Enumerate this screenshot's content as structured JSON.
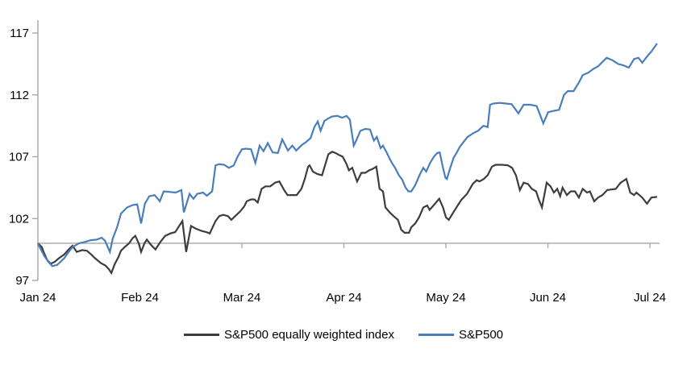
{
  "chart_data": {
    "type": "line",
    "title": "",
    "description": "Indexed performance (start = 100) of S&P500 vs S&P500 equally weighted index, Jan 2024 to Jul 2024, daily points",
    "grid": "off",
    "legend_position": "bottom-center",
    "axis_color": "#a6a6a6",
    "baseline_value": 100,
    "y_axis": {
      "ticks": [
        97,
        102,
        107,
        112,
        117
      ],
      "tick_labels": [
        "97",
        "102",
        "107",
        "112",
        "117"
      ],
      "range_shown": [
        97,
        118.3
      ]
    },
    "x_axis": {
      "tick_days": [
        0,
        21.25,
        42.5,
        63.75,
        85,
        106.25,
        127.5
      ],
      "tick_labels": [
        "Jan 24",
        "Feb 24",
        "Mar 24",
        "Apr 24",
        "May 24",
        "Jun 24",
        "Jul 24"
      ],
      "unit": "trading day index",
      "last_day": 129
    },
    "series": [
      {
        "id": "equal-weight",
        "name": "S&P500 equally weighted index",
        "color": "#3d3d3d",
        "points": [
          [
            0,
            100
          ],
          [
            0.8,
            99.7
          ],
          [
            1.3,
            99.2
          ],
          [
            2,
            98.6
          ],
          [
            2.7,
            98.35
          ],
          [
            3.5,
            98.5
          ],
          [
            4.4,
            98.8
          ],
          [
            5.5,
            99.1
          ],
          [
            6.4,
            99.5
          ],
          [
            7.2,
            99.8
          ],
          [
            8.1,
            99.3
          ],
          [
            9.2,
            99.45
          ],
          [
            10.2,
            99.4
          ],
          [
            11.1,
            99.1
          ],
          [
            11.9,
            98.8
          ],
          [
            13.1,
            98.4
          ],
          [
            14.1,
            98.2
          ],
          [
            14.8,
            97.9
          ],
          [
            15.3,
            97.6
          ],
          [
            16,
            98.3
          ],
          [
            16.8,
            98.9
          ],
          [
            17.3,
            99.4
          ],
          [
            18.1,
            99.7
          ],
          [
            19,
            100
          ],
          [
            19.7,
            100.4
          ],
          [
            20.3,
            100.6
          ],
          [
            21,
            100
          ],
          [
            21.5,
            99.3
          ],
          [
            22.2,
            100
          ],
          [
            22.7,
            100.3
          ],
          [
            23.5,
            99.9
          ],
          [
            24.5,
            99.5
          ],
          [
            25.5,
            100.1
          ],
          [
            26.5,
            100.6
          ],
          [
            27.6,
            100.8
          ],
          [
            28.6,
            100.9
          ],
          [
            29.6,
            101.5
          ],
          [
            30.1,
            101.8
          ],
          [
            30.9,
            99.3
          ],
          [
            31.9,
            101.4
          ],
          [
            32.8,
            101.2
          ],
          [
            34.1,
            101
          ],
          [
            35.1,
            100.9
          ],
          [
            35.8,
            100.8
          ],
          [
            37,
            101.8
          ],
          [
            37.8,
            102.2
          ],
          [
            38.6,
            102.3
          ],
          [
            39.6,
            102.2
          ],
          [
            40.3,
            101.9
          ],
          [
            41.1,
            102.2
          ],
          [
            42.2,
            102.6
          ],
          [
            43,
            103
          ],
          [
            43.5,
            103.4
          ],
          [
            44.4,
            103.55
          ],
          [
            45.1,
            103.55
          ],
          [
            45.8,
            103.3
          ],
          [
            46.6,
            104.4
          ],
          [
            47.4,
            104.6
          ],
          [
            48.4,
            104.6
          ],
          [
            49.4,
            104.9
          ],
          [
            50.3,
            105
          ],
          [
            51.3,
            104.3
          ],
          [
            52,
            103.9
          ],
          [
            53,
            103.9
          ],
          [
            53.9,
            103.9
          ],
          [
            54.9,
            104.4
          ],
          [
            55.6,
            105.2
          ],
          [
            56.3,
            106.2
          ],
          [
            56.6,
            106.3
          ],
          [
            57.3,
            105.8
          ],
          [
            58.2,
            105.6
          ],
          [
            59.2,
            105.5
          ],
          [
            60.5,
            107.2
          ],
          [
            61.3,
            107.4
          ],
          [
            62,
            107.3
          ],
          [
            62.7,
            107.15
          ],
          [
            63.5,
            107
          ],
          [
            64.3,
            106.4
          ],
          [
            64.8,
            105.9
          ],
          [
            65.5,
            106.1
          ],
          [
            66.5,
            105
          ],
          [
            67.4,
            105.7
          ],
          [
            68.2,
            105.7
          ],
          [
            69,
            105.9
          ],
          [
            69.7,
            106
          ],
          [
            70.5,
            106.2
          ],
          [
            71.2,
            104.4
          ],
          [
            71.9,
            104.2
          ],
          [
            72.4,
            102.9
          ],
          [
            73.3,
            102.5
          ],
          [
            74.1,
            102.2
          ],
          [
            75,
            101.9
          ],
          [
            75.7,
            101.1
          ],
          [
            76.4,
            100.85
          ],
          [
            77.3,
            100.85
          ],
          [
            77.8,
            101.3
          ],
          [
            78.6,
            101.6
          ],
          [
            79.4,
            102.1
          ],
          [
            80.3,
            102.9
          ],
          [
            81.1,
            103.05
          ],
          [
            81.6,
            102.7
          ],
          [
            82.4,
            103.05
          ],
          [
            83.6,
            103.6
          ],
          [
            84.4,
            102.9
          ],
          [
            85,
            102.1
          ],
          [
            85.6,
            101.9
          ],
          [
            86.4,
            102.4
          ],
          [
            87.2,
            102.9
          ],
          [
            88.2,
            103.5
          ],
          [
            89.4,
            104
          ],
          [
            90.6,
            104.8
          ],
          [
            91.4,
            105.1
          ],
          [
            92,
            105
          ],
          [
            92.9,
            105.2
          ],
          [
            93.7,
            105.5
          ],
          [
            94.6,
            106.2
          ],
          [
            95.4,
            106.35
          ],
          [
            96.6,
            106.35
          ],
          [
            97.9,
            106.3
          ],
          [
            98.8,
            106.1
          ],
          [
            99.6,
            105.5
          ],
          [
            100.4,
            104.3
          ],
          [
            101.2,
            104.9
          ],
          [
            102.1,
            104.8
          ],
          [
            102.9,
            104.4
          ],
          [
            103.8,
            104.2
          ],
          [
            104.3,
            103.6
          ],
          [
            105,
            102.9
          ],
          [
            106,
            104.9
          ],
          [
            106.8,
            104.6
          ],
          [
            107.5,
            104.1
          ],
          [
            108.2,
            104.4
          ],
          [
            108.8,
            103.8
          ],
          [
            109.3,
            104.5
          ],
          [
            110.2,
            103.9
          ],
          [
            111,
            104.2
          ],
          [
            111.9,
            104.2
          ],
          [
            112.7,
            103.7
          ],
          [
            113.5,
            104.4
          ],
          [
            114.4,
            104.1
          ],
          [
            115,
            104.2
          ],
          [
            115.9,
            103.4
          ],
          [
            116.7,
            103.7
          ],
          [
            117.6,
            103.9
          ],
          [
            118.6,
            104.3
          ],
          [
            119.4,
            104.35
          ],
          [
            120.4,
            104.4
          ],
          [
            121.4,
            104.9
          ],
          [
            122.6,
            105.2
          ],
          [
            123.4,
            104.1
          ],
          [
            124.2,
            103.9
          ],
          [
            124.7,
            104.1
          ],
          [
            125.9,
            103.7
          ],
          [
            126.9,
            103.2
          ],
          [
            127.8,
            103.7
          ],
          [
            129,
            103.75
          ]
        ]
      },
      {
        "id": "sp500",
        "name": "S&P500",
        "color": "#4a7ebb",
        "points": [
          [
            0,
            100
          ],
          [
            0.5,
            99.6
          ],
          [
            1.3,
            99
          ],
          [
            2.2,
            98.5
          ],
          [
            3,
            98.15
          ],
          [
            4,
            98.25
          ],
          [
            4.7,
            98.5
          ],
          [
            5.5,
            98.8
          ],
          [
            6.4,
            99.3
          ],
          [
            7.2,
            99.7
          ],
          [
            8.6,
            100
          ],
          [
            9.7,
            100.1
          ],
          [
            11,
            100.25
          ],
          [
            12.3,
            100.3
          ],
          [
            13.3,
            100.45
          ],
          [
            14,
            100.2
          ],
          [
            15,
            99.3
          ],
          [
            15.6,
            100.4
          ],
          [
            16.5,
            101.3
          ],
          [
            17.3,
            102.4
          ],
          [
            18.6,
            102.9
          ],
          [
            19.8,
            103.1
          ],
          [
            20.7,
            103.15
          ],
          [
            21.5,
            101.6
          ],
          [
            22.3,
            103.2
          ],
          [
            23.2,
            103.8
          ],
          [
            24.3,
            103.9
          ],
          [
            25.4,
            103.4
          ],
          [
            26.2,
            104.2
          ],
          [
            27.4,
            104.15
          ],
          [
            28.7,
            104.1
          ],
          [
            29.9,
            104.3
          ],
          [
            30.4,
            102.5
          ],
          [
            31.6,
            104
          ],
          [
            32.4,
            103.6
          ],
          [
            33.2,
            104
          ],
          [
            34.4,
            104.1
          ],
          [
            35.2,
            103.85
          ],
          [
            36.3,
            104.2
          ],
          [
            37,
            106.3
          ],
          [
            37.8,
            106.4
          ],
          [
            38.8,
            106.35
          ],
          [
            39.8,
            106.1
          ],
          [
            40.8,
            106.3
          ],
          [
            41.6,
            107
          ],
          [
            42.5,
            107.6
          ],
          [
            43.4,
            107.65
          ],
          [
            44.4,
            107.6
          ],
          [
            45.3,
            106.5
          ],
          [
            46.2,
            107.9
          ],
          [
            47,
            107.45
          ],
          [
            47.9,
            108.1
          ],
          [
            48.9,
            107.35
          ],
          [
            50,
            107.3
          ],
          [
            50.9,
            108.4
          ],
          [
            52.1,
            107.5
          ],
          [
            53,
            107.9
          ],
          [
            53.8,
            107.5
          ],
          [
            55,
            107.95
          ],
          [
            55.9,
            108.2
          ],
          [
            56.8,
            108.5
          ],
          [
            57.6,
            109.4
          ],
          [
            58.3,
            109.85
          ],
          [
            58.9,
            109.1
          ],
          [
            59.7,
            109.9
          ],
          [
            60.5,
            110.1
          ],
          [
            61.3,
            110.25
          ],
          [
            62.4,
            110.3
          ],
          [
            63.4,
            110.15
          ],
          [
            64.3,
            110.3
          ],
          [
            65,
            110
          ],
          [
            65.8,
            107.9
          ],
          [
            66.3,
            108.3
          ],
          [
            67.2,
            109.1
          ],
          [
            68.2,
            109.25
          ],
          [
            69.2,
            109.2
          ],
          [
            70,
            108.3
          ],
          [
            70.6,
            108.6
          ],
          [
            71.4,
            107.7
          ],
          [
            71.9,
            107.9
          ],
          [
            72.7,
            107.3
          ],
          [
            73.6,
            106.6
          ],
          [
            74.4,
            106.1
          ],
          [
            75.2,
            105.5
          ],
          [
            75.9,
            105.15
          ],
          [
            76.6,
            104.5
          ],
          [
            77.2,
            104.2
          ],
          [
            77.8,
            104.2
          ],
          [
            78.6,
            104.7
          ],
          [
            79.6,
            105.6
          ],
          [
            80.3,
            106.1
          ],
          [
            80.9,
            105.8
          ],
          [
            81.7,
            106.5
          ],
          [
            82.5,
            107
          ],
          [
            83.2,
            107.3
          ],
          [
            83.7,
            107.35
          ],
          [
            84.4,
            106.1
          ],
          [
            84.9,
            105.3
          ],
          [
            85.2,
            105.2
          ],
          [
            85.9,
            106.1
          ],
          [
            86.6,
            106.9
          ],
          [
            87.2,
            107.3
          ],
          [
            87.9,
            107.8
          ],
          [
            88.7,
            108.2
          ],
          [
            89.5,
            108.6
          ],
          [
            90.7,
            108.9
          ],
          [
            91.7,
            109.1
          ],
          [
            92.8,
            109.5
          ],
          [
            93.7,
            109.4
          ],
          [
            94.2,
            111.2
          ],
          [
            94.9,
            111.3
          ],
          [
            96.2,
            111.35
          ],
          [
            97.5,
            111.3
          ],
          [
            98.7,
            111.25
          ],
          [
            100.1,
            110.5
          ],
          [
            101.2,
            111.2
          ],
          [
            102.6,
            111.2
          ],
          [
            103.9,
            111.1
          ],
          [
            104.6,
            110.4
          ],
          [
            105.3,
            109.7
          ],
          [
            106.3,
            110.6
          ],
          [
            107.4,
            110.7
          ],
          [
            108.6,
            110.8
          ],
          [
            109.6,
            112
          ],
          [
            110.4,
            112.3
          ],
          [
            111.6,
            112.3
          ],
          [
            112.7,
            113
          ],
          [
            113.5,
            113.6
          ],
          [
            114.7,
            113.8
          ],
          [
            115.7,
            114.1
          ],
          [
            116.7,
            114.3
          ],
          [
            117.7,
            114.7
          ],
          [
            118.5,
            115
          ],
          [
            119.7,
            114.8
          ],
          [
            120.9,
            114.5
          ],
          [
            121.9,
            114.4
          ],
          [
            123.1,
            114.2
          ],
          [
            124.2,
            114.9
          ],
          [
            125.1,
            115
          ],
          [
            125.9,
            114.6
          ],
          [
            126.9,
            115.1
          ],
          [
            127.8,
            115.5
          ],
          [
            129,
            116.15
          ]
        ]
      }
    ]
  },
  "legend": {
    "items": [
      {
        "label": "S&P500 equally weighted index"
      },
      {
        "label": "S&P500"
      }
    ]
  }
}
